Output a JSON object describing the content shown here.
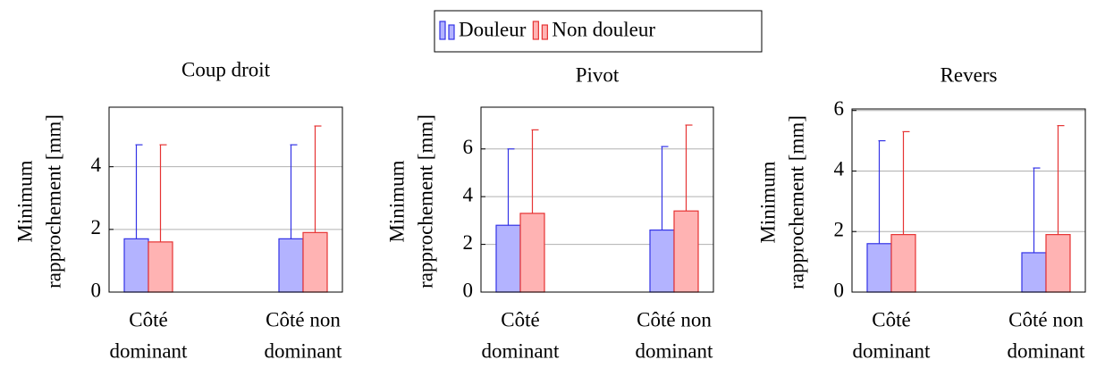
{
  "chart_data": [
    {
      "type": "bar",
      "title": "Coup droit",
      "ylabel": [
        "Minimum",
        "rapprochement [mm]"
      ],
      "categories": [
        [
          "Côté",
          "dominant"
        ],
        [
          "Côté non",
          "dominant"
        ]
      ],
      "series": [
        {
          "name": "Douleur",
          "color": "#3333e6",
          "fill": "#b3b3ff",
          "values": [
            1.7,
            1.7
          ],
          "errors": [
            3.0,
            3.0
          ]
        },
        {
          "name": "Non douleur",
          "color": "#e63333",
          "fill": "#ffb3b3",
          "values": [
            1.6,
            1.9
          ],
          "errors": [
            3.1,
            3.4
          ]
        }
      ],
      "ylim": [
        0,
        5.9
      ],
      "yticks": [
        0,
        2,
        4
      ],
      "grid": true
    },
    {
      "type": "bar",
      "title": "Pivot",
      "ylabel": [
        "Minimum",
        "rapprochement [mm]"
      ],
      "categories": [
        [
          "Côté",
          "dominant"
        ],
        [
          "Côté non",
          "dominant"
        ]
      ],
      "series": [
        {
          "color": "#3333e6",
          "fill": "#b3b3ff",
          "values": [
            2.8,
            2.6
          ],
          "errors": [
            3.2,
            3.5
          ]
        },
        {
          "color": "#e63333",
          "fill": "#ffb3b3",
          "values": [
            3.3,
            3.4
          ],
          "errors": [
            3.5,
            3.6
          ]
        }
      ],
      "ylim": [
        0,
        7.75
      ],
      "yticks": [
        0,
        2,
        4,
        6
      ],
      "grid": true
    },
    {
      "type": "bar",
      "title": "Revers",
      "ylabel": [
        "Minimum",
        "rapprochement [mm]"
      ],
      "categories": [
        [
          "Côté",
          "dominant"
        ],
        [
          "Côté non",
          "dominant"
        ]
      ],
      "series": [
        {
          "color": "#3333e6",
          "fill": "#b3b3ff",
          "values": [
            1.6,
            1.3
          ],
          "errors": [
            3.4,
            2.8
          ]
        },
        {
          "color": "#e63333",
          "fill": "#ffb3b3",
          "values": [
            1.9,
            1.9
          ],
          "errors": [
            3.4,
            3.6
          ]
        }
      ],
      "ylim": [
        0,
        6.05
      ],
      "yticks": [
        0,
        2,
        4,
        6
      ],
      "grid": true
    }
  ]
}
